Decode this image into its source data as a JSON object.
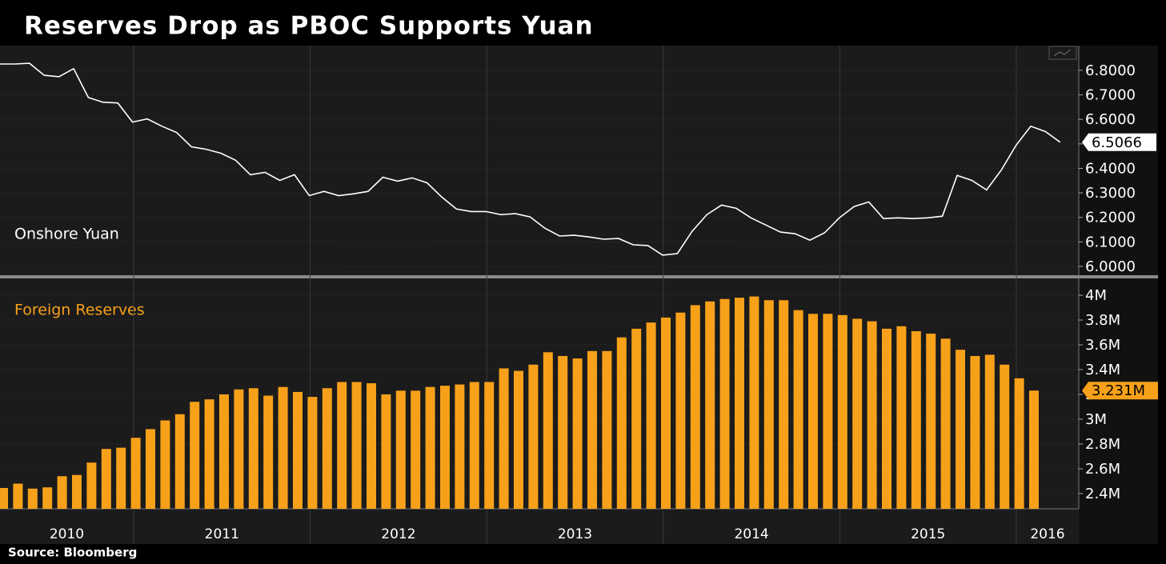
{
  "title": "Reserves Drop as PBOC Supports Yuan",
  "source": "Source: Bloomberg",
  "x_axis_labels": [
    "2010",
    "2011",
    "2012",
    "2013",
    "2014",
    "2015",
    "2016"
  ],
  "chart_data": [
    {
      "type": "line",
      "series": [
        {
          "name": "Onshore Yuan",
          "color": "#ffffff",
          "values": [
            6.826,
            6.826,
            6.829,
            6.78,
            6.774,
            6.807,
            6.689,
            6.67,
            6.667,
            6.589,
            6.602,
            6.572,
            6.546,
            6.488,
            6.478,
            6.462,
            6.433,
            6.374,
            6.384,
            6.351,
            6.374,
            6.289,
            6.306,
            6.289,
            6.296,
            6.306,
            6.364,
            6.348,
            6.361,
            6.341,
            6.283,
            6.234,
            6.224,
            6.224,
            6.211,
            6.215,
            6.202,
            6.156,
            6.124,
            6.127,
            6.12,
            6.111,
            6.114,
            6.088,
            6.085,
            6.046,
            6.052,
            6.143,
            6.211,
            6.25,
            6.237,
            6.198,
            6.169,
            6.14,
            6.133,
            6.107,
            6.137,
            6.198,
            6.244,
            6.263,
            6.195,
            6.198,
            6.195,
            6.198,
            6.205,
            6.371,
            6.351,
            6.312,
            6.393,
            6.494,
            6.572,
            6.55,
            6.5066
          ]
        }
      ],
      "ylim": [
        5.964,
        6.901
      ],
      "yticks": [
        {
          "value": 6,
          "label": "6.0000"
        },
        {
          "value": 6.1,
          "label": "6.1000"
        },
        {
          "value": 6.2,
          "label": "6.2000"
        },
        {
          "value": 6.3,
          "label": "6.3000"
        },
        {
          "value": 6.4,
          "label": "6.4000"
        },
        {
          "value": 6.5,
          "label": "6.5000"
        },
        {
          "value": 6.6,
          "label": "6.6000"
        },
        {
          "value": 6.7,
          "label": "6.7000"
        },
        {
          "value": 6.8,
          "label": "6.8000"
        }
      ],
      "grid": true
    },
    {
      "type": "bar",
      "series": [
        {
          "name": "Foreign Reserves",
          "color": "#f7a11a",
          "values": [
            2.445,
            2.48,
            2.44,
            2.45,
            2.54,
            2.55,
            2.65,
            2.76,
            2.77,
            2.85,
            2.92,
            2.99,
            3.04,
            3.14,
            3.16,
            3.2,
            3.24,
            3.25,
            3.19,
            3.26,
            3.22,
            3.18,
            3.25,
            3.3,
            3.3,
            3.29,
            3.2,
            3.23,
            3.23,
            3.26,
            3.27,
            3.28,
            3.3,
            3.3,
            3.41,
            3.39,
            3.44,
            3.54,
            3.51,
            3.49,
            3.55,
            3.55,
            3.66,
            3.73,
            3.78,
            3.82,
            3.86,
            3.92,
            3.95,
            3.97,
            3.98,
            3.99,
            3.96,
            3.96,
            3.88,
            3.85,
            3.85,
            3.84,
            3.81,
            3.79,
            3.73,
            3.75,
            3.71,
            3.69,
            3.65,
            3.56,
            3.51,
            3.52,
            3.44,
            3.33,
            3.231
          ],
          "value_labels": [
            null,
            null,
            null,
            null,
            null,
            null,
            null,
            null,
            null,
            null,
            null,
            null,
            null,
            null,
            null,
            null,
            null,
            null,
            null,
            null,
            null,
            null,
            null,
            null,
            null,
            null,
            null,
            null,
            null,
            null,
            null,
            null,
            null,
            null,
            null,
            null,
            null,
            null,
            null,
            null,
            null,
            null,
            null,
            null,
            null,
            null,
            null,
            null,
            null,
            null,
            null,
            null,
            null,
            null,
            null,
            null,
            null,
            null,
            null,
            null,
            null,
            null,
            null,
            null,
            null,
            null,
            null,
            null,
            null,
            null,
            "3.231M"
          ]
        }
      ],
      "ylim": [
        2.277,
        4.123
      ],
      "yticks": [
        {
          "value": 2.4,
          "label": "2.4M"
        },
        {
          "value": 2.6,
          "label": "2.6M"
        },
        {
          "value": 2.8,
          "label": "2.8M"
        },
        {
          "value": 3,
          "label": "3M"
        },
        {
          "value": 3.2,
          "label": "3.2M"
        },
        {
          "value": 3.4,
          "label": "3.4M"
        },
        {
          "value": 3.6,
          "label": "3.6M"
        },
        {
          "value": 3.8,
          "label": "3.8M"
        },
        {
          "value": 4,
          "label": "4M"
        }
      ],
      "grid": true
    }
  ]
}
